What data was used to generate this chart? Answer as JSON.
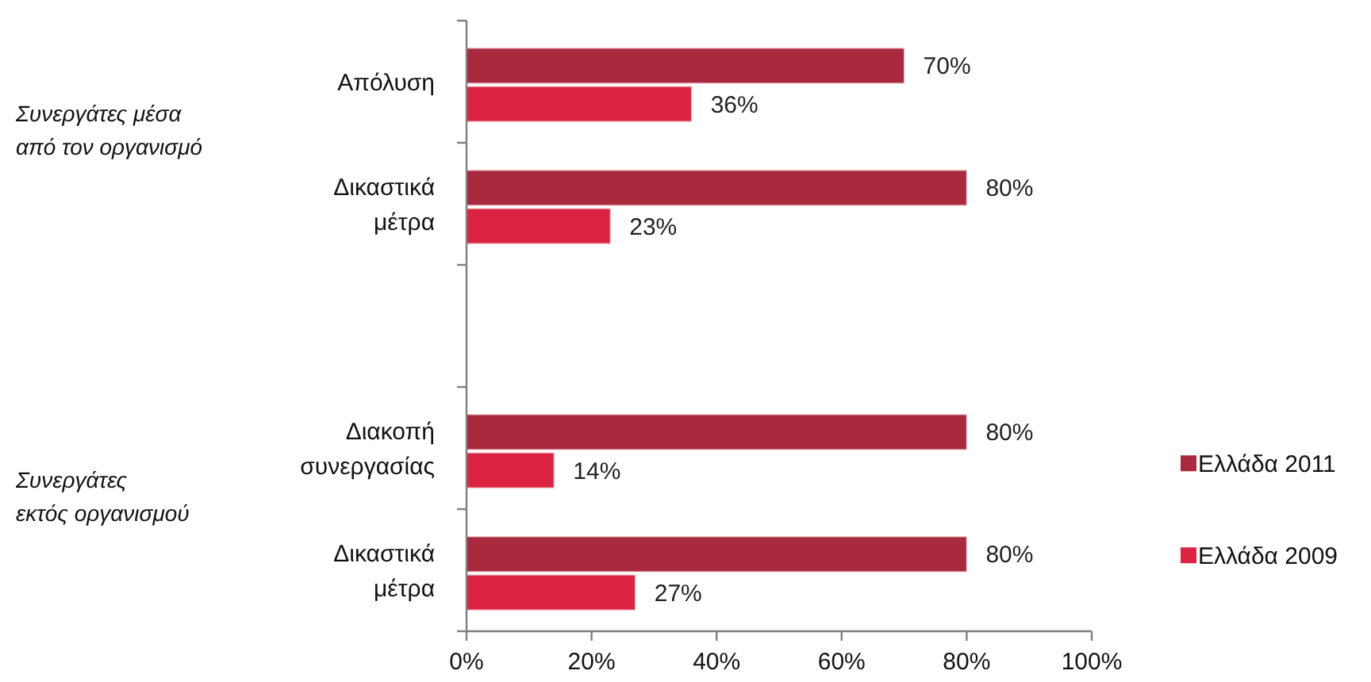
{
  "chart_data": {
    "type": "bar",
    "orientation": "horizontal",
    "categories": [
      "Απόλυση",
      "Δικαστικά μέτρα",
      null,
      "Διακοπή συνεργασίας",
      "Δικαστικά μέτρα"
    ],
    "series": [
      {
        "name": "Ελλάδα 2011",
        "color": "#a92a3e",
        "values": [
          70,
          80,
          null,
          80,
          80
        ],
        "value_labels": [
          "70%",
          "80%",
          null,
          "80%",
          "80%"
        ]
      },
      {
        "name": "Ελλάδα 2009",
        "color": "#dc2442",
        "values": [
          36,
          23,
          null,
          14,
          27
        ],
        "value_labels": [
          "36%",
          "23%",
          null,
          "14%",
          "27%"
        ]
      }
    ],
    "xlim": [
      0,
      100
    ],
    "xticks": [
      {
        "value": 0,
        "label": "0%"
      },
      {
        "value": 20,
        "label": "20%"
      },
      {
        "value": 40,
        "label": "40%"
      },
      {
        "value": 60,
        "label": "60%"
      },
      {
        "value": 80,
        "label": "80%"
      },
      {
        "value": 100,
        "label": "100%"
      }
    ],
    "grid": false,
    "legend": "right",
    "annotations": [
      "Συνεργάτες μέσα από τον οργανισμό",
      "Συνεργάτες εκτός οργανισμού"
    ]
  }
}
